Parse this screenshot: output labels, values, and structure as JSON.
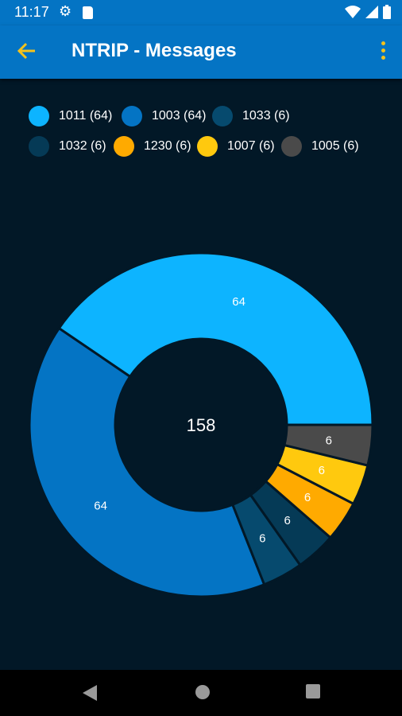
{
  "status_bar": {
    "time": "11:17",
    "icons": [
      "settings-gear-icon",
      "sd-card-icon",
      "wifi-icon",
      "cell-signal-icon",
      "battery-icon"
    ]
  },
  "app_bar": {
    "title": "NTRIP - Messages",
    "back_icon": "arrow-left-icon",
    "menu_icon": "more-vertical-icon",
    "accent_color": "#f4c21c",
    "background_color": "#0474c4"
  },
  "chart_data": {
    "type": "pie",
    "variant": "donut",
    "center_label": "158",
    "legend_placement": "top",
    "slices": [
      {
        "name": "1011",
        "legend": "1011 (64)",
        "value": 64,
        "color": "#0db4ff"
      },
      {
        "name": "1003",
        "legend": "1003 (64)",
        "value": 64,
        "color": "#0474c4"
      },
      {
        "name": "1033",
        "legend": "1033 (6)",
        "value": 6,
        "color": "#064a6e"
      },
      {
        "name": "1032",
        "legend": "1032 (6)",
        "value": 6,
        "color": "#053a56"
      },
      {
        "name": "1230",
        "legend": "1230 (6)",
        "value": 6,
        "color": "#ffaa00"
      },
      {
        "name": "1007",
        "legend": "1007 (6)",
        "value": 6,
        "color": "#ffc90e"
      },
      {
        "name": "1005",
        "legend": "1005 (6)",
        "value": 6,
        "color": "#4a4a4a"
      }
    ]
  },
  "nav_bar": {
    "buttons": [
      "back-triangle-icon",
      "home-circle-icon",
      "recents-square-icon"
    ]
  }
}
